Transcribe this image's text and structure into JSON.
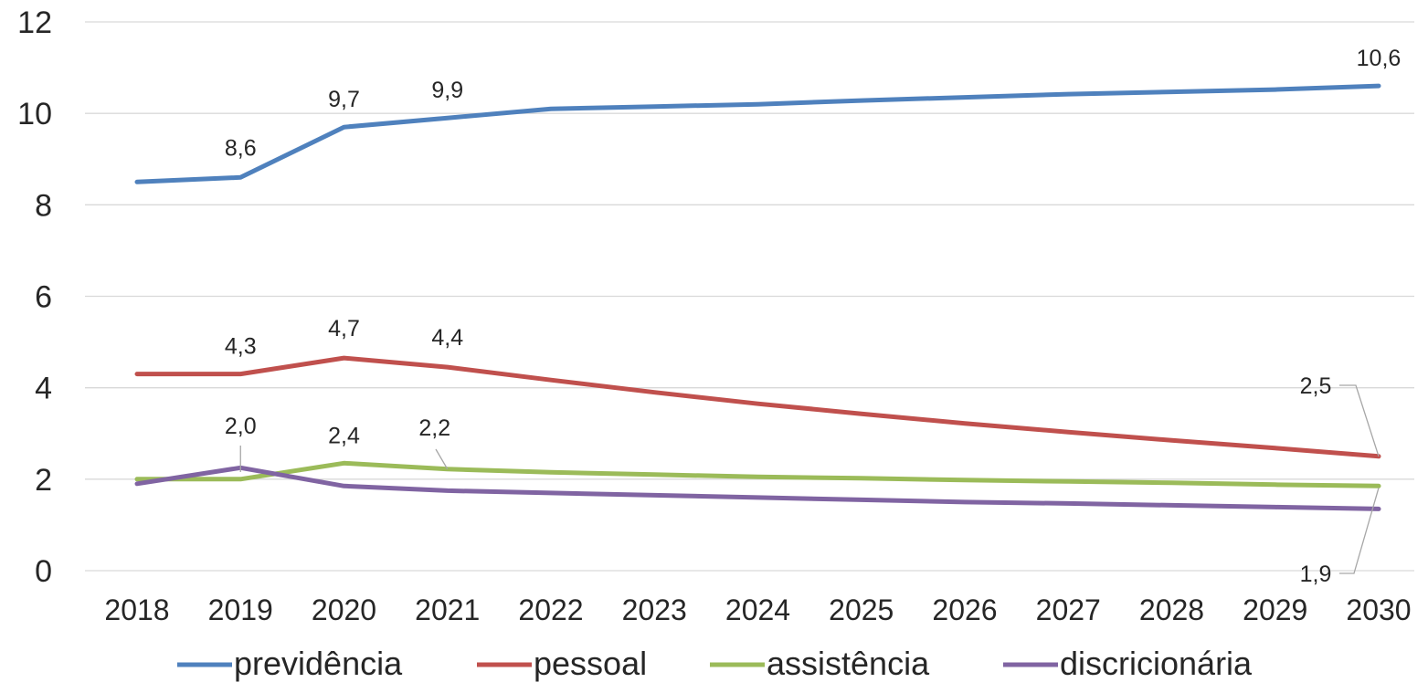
{
  "chart_data": {
    "type": "line",
    "categories": [
      "2018",
      "2019",
      "2020",
      "2021",
      "2022",
      "2023",
      "2024",
      "2025",
      "2026",
      "2027",
      "2028",
      "2029",
      "2030"
    ],
    "ylim": [
      0,
      12
    ],
    "yticks": [
      0,
      2,
      4,
      6,
      8,
      10,
      12
    ],
    "grid": true,
    "legend_position": "bottom",
    "series": [
      {
        "name": "previdência",
        "color": "#4F81BD",
        "values": [
          8.5,
          8.6,
          9.7,
          9.9,
          10.1,
          10.15,
          10.2,
          10.28,
          10.35,
          10.42,
          10.47,
          10.52,
          10.6
        ],
        "labels": [
          {
            "index": 1,
            "text": "8,6"
          },
          {
            "index": 2,
            "text": "9,7"
          },
          {
            "index": 3,
            "text": "9,9"
          },
          {
            "index": 12,
            "text": "10,6"
          }
        ]
      },
      {
        "name": "pessoal",
        "color": "#C0504D",
        "values": [
          4.3,
          4.3,
          4.65,
          4.45,
          4.17,
          3.9,
          3.65,
          3.43,
          3.22,
          3.03,
          2.85,
          2.68,
          2.5
        ],
        "labels": [
          {
            "index": 1,
            "text": "4,3"
          },
          {
            "index": 2,
            "text": "4,7"
          },
          {
            "index": 3,
            "text": "4,4"
          },
          {
            "index": 12,
            "text": "2,5"
          }
        ]
      },
      {
        "name": "assistência",
        "color": "#9BBB59",
        "values": [
          2.0,
          2.0,
          2.35,
          2.22,
          2.15,
          2.1,
          2.05,
          2.02,
          1.98,
          1.95,
          1.92,
          1.88,
          1.85
        ],
        "labels": [
          {
            "index": 1,
            "text": "2,0"
          },
          {
            "index": 2,
            "text": "2,4"
          },
          {
            "index": 3,
            "text": "2,2"
          },
          {
            "index": 12,
            "text": "1,9"
          }
        ]
      },
      {
        "name": "discricionária",
        "color": "#8064A2",
        "values": [
          1.9,
          2.25,
          1.85,
          1.75,
          1.7,
          1.65,
          1.6,
          1.55,
          1.5,
          1.47,
          1.43,
          1.39,
          1.35
        ],
        "labels": []
      }
    ]
  }
}
